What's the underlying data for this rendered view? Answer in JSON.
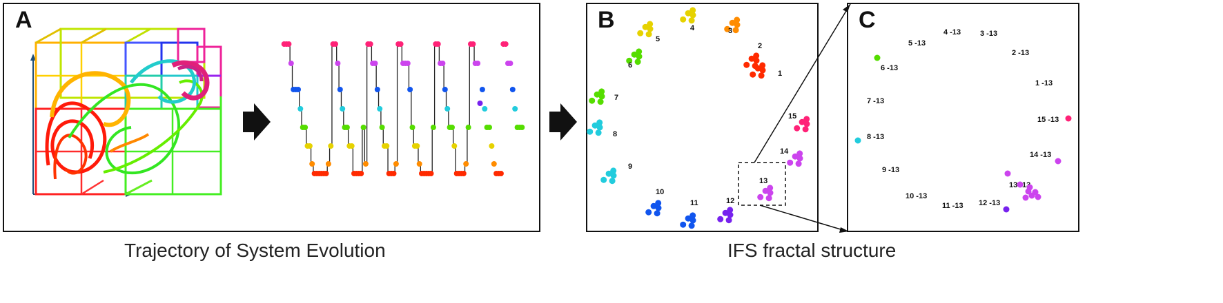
{
  "panels": {
    "a": {
      "label": "A",
      "caption": "Trajectory of System Evolution"
    },
    "b": {
      "label": "B",
      "caption": "IFS fractal structure"
    },
    "c": {
      "label": "C"
    }
  },
  "ifs_labels_b": [
    "1",
    "2",
    "3",
    "4",
    "5",
    "6",
    "7",
    "8",
    "9",
    "10",
    "11",
    "12",
    "13",
    "14",
    "15"
  ],
  "ifs_labels_c": [
    "1 -13",
    "2 -13",
    "3 -13",
    "4 -13",
    "5 -13",
    "6 -13",
    "7 -13",
    "8 -13",
    "9 -13",
    "10 -13",
    "11 -13",
    "12 -13",
    "13 -13",
    "14 -13",
    "15 -13"
  ],
  "colors": {
    "red": "#ff2a00",
    "orange": "#ff8c00",
    "yellow": "#e6d200",
    "green": "#55dd00",
    "cyan": "#22ccdd",
    "blue": "#1155ee",
    "violet": "#7722ee",
    "magenta": "#cc44ee",
    "pink": "#ff2277"
  }
}
